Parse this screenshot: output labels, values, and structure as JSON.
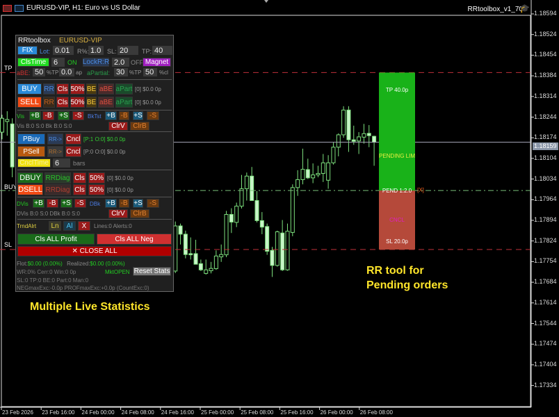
{
  "window": {
    "title": "EURUSD-VIP, H1:  Euro vs US Dollar",
    "indicator": "RRtoolbox_v1_70",
    "indicator_icon": "graduation-cap-icon"
  },
  "price_axis": [
    "1.18594",
    "1.18524",
    "1.18454",
    "1.18384",
    "1.18314",
    "1.18244",
    "1.18174",
    "1.18104",
    "1.18034",
    "1.17964",
    "1.17894",
    "1.17824",
    "1.17754",
    "1.17684",
    "1.17614",
    "1.17544",
    "1.17474",
    "1.17404",
    "1.17334"
  ],
  "current_price": "1.18159",
  "time_axis": [
    "23 Feb 2026",
    "23 Feb 16:00",
    "24 Feb 00:00",
    "24 Feb 08:00",
    "24 Feb 16:00",
    "25 Feb 00:00",
    "25 Feb 08:00",
    "25 Feb 16:00",
    "26 Feb 00:00",
    "26 Feb 08:00"
  ],
  "colors": {
    "bull": "#7de07d",
    "bear": "#c8f5c8",
    "tp_box": "#19b219",
    "sl_box": "#b5493a",
    "tp_line": "#c0303a",
    "entry_line": "#7ac07a"
  },
  "levels": {
    "tp": 1.18395,
    "entry": 1.17995,
    "sl": 1.17795,
    "current": 1.18159,
    "tp_label": "TP",
    "entry_label": "BUY",
    "sl_label": "SL"
  },
  "rr_box": {
    "tp_text": "TP 40.0p",
    "mid_text": "PENDING LIM",
    "entry_text": "PEND 1:2.0",
    "close_text": "[X]",
    "cancel_text": "CNCL",
    "sl_text": "SL 20.0p"
  },
  "candles": [
    {
      "i": 0,
      "o": 1.18193,
      "h": 1.18252,
      "l": 1.18169,
      "c": 1.1824
    },
    {
      "i": 1,
      "o": 1.18229,
      "h": 1.18264,
      "l": 1.18181,
      "c": 1.18236
    },
    {
      "i": 2,
      "o": 1.18221,
      "h": 1.1824,
      "l": 1.1804,
      "c": 1.18075
    },
    {
      "i": 34,
      "o": 1.17722,
      "h": 1.1789,
      "l": 1.17715,
      "c": 1.17875
    },
    {
      "i": 35,
      "o": 1.17875,
      "h": 1.17883,
      "l": 1.17812,
      "c": 1.17847
    },
    {
      "i": 36,
      "o": 1.17847,
      "h": 1.17859,
      "l": 1.17765,
      "c": 1.17778
    },
    {
      "i": 37,
      "o": 1.17781,
      "h": 1.17836,
      "l": 1.17761,
      "c": 1.17777
    },
    {
      "i": 38,
      "o": 1.17781,
      "h": 1.17828,
      "l": 1.17745,
      "c": 1.17745
    },
    {
      "i": 39,
      "o": 1.17747,
      "h": 1.17761,
      "l": 1.17722,
      "c": 1.17726
    },
    {
      "i": 40,
      "o": 1.17714,
      "h": 1.17761,
      "l": 1.1771,
      "c": 1.17726
    },
    {
      "i": 41,
      "o": 1.17723,
      "h": 1.17753,
      "l": 1.17714,
      "c": 1.17731
    },
    {
      "i": 42,
      "o": 1.1773,
      "h": 1.17792,
      "l": 1.17726,
      "c": 1.17773
    },
    {
      "i": 43,
      "o": 1.1777,
      "h": 1.17812,
      "l": 1.17753,
      "c": 1.17778
    },
    {
      "i": 44,
      "o": 1.17777,
      "h": 1.17926,
      "l": 1.17769,
      "c": 1.17914
    },
    {
      "i": 45,
      "o": 1.17914,
      "h": 1.17935,
      "l": 1.17851,
      "c": 1.17888
    },
    {
      "i": 46,
      "o": 1.17887,
      "h": 1.17954,
      "l": 1.17871,
      "c": 1.17942
    },
    {
      "i": 47,
      "o": 1.17942,
      "h": 1.18048,
      "l": 1.17934,
      "c": 1.18001
    },
    {
      "i": 48,
      "o": 1.18001,
      "h": 1.18056,
      "l": 1.17961,
      "c": 1.18044
    },
    {
      "i": 49,
      "o": 1.18044,
      "h": 1.18075,
      "l": 1.17961,
      "c": 1.17961
    },
    {
      "i": 50,
      "o": 1.17961,
      "h": 1.17993,
      "l": 1.17887,
      "c": 1.17893
    },
    {
      "i": 51,
      "o": 1.17893,
      "h": 1.17922,
      "l": 1.17847,
      "c": 1.17871
    },
    {
      "i": 52,
      "o": 1.17873,
      "h": 1.17883,
      "l": 1.17777,
      "c": 1.17789
    },
    {
      "i": 53,
      "o": 1.17792,
      "h": 1.17804,
      "l": 1.17702,
      "c": 1.17741
    },
    {
      "i": 54,
      "o": 1.17741,
      "h": 1.17859,
      "l": 1.17737,
      "c": 1.17855
    },
    {
      "i": 55,
      "o": 1.17851,
      "h": 1.17895,
      "l": 1.17722,
      "c": 1.17726
    },
    {
      "i": 56,
      "o": 1.17726,
      "h": 1.17883,
      "l": 1.17723,
      "c": 1.17857
    },
    {
      "i": 57,
      "o": 1.17853,
      "h": 1.18016,
      "l": 1.1784,
      "c": 1.18005
    },
    {
      "i": 58,
      "o": 1.18005,
      "h": 1.18064,
      "l": 1.17977,
      "c": 1.18032
    },
    {
      "i": 59,
      "o": 1.18032,
      "h": 1.18137,
      "l": 1.18016,
      "c": 1.18067
    },
    {
      "i": 60,
      "o": 1.18066,
      "h": 1.18103,
      "l": 1.18034,
      "c": 1.18038
    },
    {
      "i": 61,
      "o": 1.18038,
      "h": 1.18087,
      "l": 1.1802,
      "c": 1.18048
    },
    {
      "i": 62,
      "o": 1.18048,
      "h": 1.18079,
      "l": 1.1804,
      "c": 1.18053
    },
    {
      "i": 63,
      "o": 1.18053,
      "h": 1.18119,
      "l": 1.18024,
      "c": 1.18089
    },
    {
      "i": 64,
      "o": 1.1803,
      "h": 1.18115,
      "l": 1.18001,
      "c": 1.18089
    },
    {
      "i": 65,
      "o": 1.18089,
      "h": 1.18158,
      "l": 1.18083,
      "c": 1.18142
    },
    {
      "i": 66,
      "o": 1.18142,
      "h": 1.18189,
      "l": 1.18111,
      "c": 1.18184
    },
    {
      "i": 67,
      "o": 1.18184,
      "h": 1.18281,
      "l": 1.18174,
      "c": 1.18268
    },
    {
      "i": 68,
      "o": 1.18268,
      "h": 1.18281,
      "l": 1.18126,
      "c": 1.18167
    },
    {
      "i": 69,
      "o": 1.18167,
      "h": 1.18215,
      "l": 1.1815,
      "c": 1.18162
    },
    {
      "i": 70,
      "o": 1.18163,
      "h": 1.18193,
      "l": 1.18119,
      "c": 1.18177
    },
    {
      "i": 71,
      "o": 1.18176,
      "h": 1.18221,
      "l": 1.18154,
      "c": 1.18188
    },
    {
      "i": 72,
      "o": 1.18189,
      "h": 1.18217,
      "l": 1.18142,
      "c": 1.18181
    },
    {
      "i": 73,
      "o": 1.18179,
      "h": 1.18181,
      "l": 1.18079,
      "c": 1.18159
    }
  ],
  "panel": {
    "title": "RRtoolbox",
    "symbol": "EURUSD-VIP",
    "fix": "FIX",
    "lot_label": "Lot:",
    "lot": "0.01",
    "risk_label": "R%:",
    "risk": "1.0",
    "sl_label": "SL:",
    "sl": "20",
    "tp_label": "TP:",
    "tp": "40",
    "clstime": "ClsTime",
    "clstime_val": "6",
    "clstime_state": "ON",
    "lockrr": "LockR:R",
    "lockrr_val": "2.0",
    "lockrr_state": "OFF",
    "magnet": "Magnet",
    "abe_label": "aBE:",
    "abe_val": "50",
    "abe_unit": "%TP",
    "abe_p": "0.0",
    "abe_p_unit": "ap",
    "apartial_label": "aPartial:",
    "apartial_tp": "30",
    "apartial_tp_unit": "%TP",
    "apartial_cl": "50",
    "apartial_cl_unit": "%cl",
    "buy": "BUY",
    "sell": "SELL",
    "rr": "RR",
    "cls": "Cls",
    "half": "50%",
    "be": "BE",
    "abe": "aBE",
    "apart": "aPart",
    "buy_stat": "[0] $0.0 0p",
    "sell_stat": "[0] $0.0 0p",
    "vis": "Vis",
    "plus_b": "+B",
    "minus_b": "-B",
    "plus_s": "+S",
    "minus_s": "-S",
    "bktst": "BkTst",
    "vis_stat": "Vis B:0 S:0  Bk B:0 S:0",
    "clrv": "ClrV",
    "clrb": "ClrB",
    "pbuy": "PBuy",
    "psell": "PSell",
    "rr_arrow": "RR->",
    "cncl": "Cncl",
    "pbuy_stat": "[P:1 O:0] $0.0 0p",
    "psell_stat": "[P:0 O:0] $0.0 0p",
    "cncltime": "CnclTime",
    "cncltime_val": "6",
    "bars": "bars",
    "dbuy": "DBUY",
    "dsell": "DSELL",
    "rrdiag": "RRDiag",
    "dbuy_stat": "[0] $0.0 0p",
    "dsell_stat": "[0] $0.0 0p",
    "dvis": "DVis",
    "dbk": "DBk",
    "dvis_stat": "DVis B:0 S:0  DBk B:0 S:0",
    "trndalrt": "TrndAlrt",
    "ln": "Ln",
    "al": "Al",
    "x": "X",
    "alerts_stat": "Lines:0 Alerts:0",
    "cls_all_profit": "Cls ALL Profit",
    "cls_all_neg": "Cls ALL Neg",
    "close_all": "✕ CLOSE ALL",
    "flot_label": "Flot:",
    "flot": "$0.00 (0.00%)",
    "realized_label": "Realized:",
    "realized": "$0.00 (0.00%)",
    "mkt": "MktOPEN",
    "stats1": "WR:0%   Cerr:0 Win:0 0p",
    "reset": "Reset Stats",
    "stats2": "SL:0 TP:0 BE:0 Part:0 Man:0",
    "stats3": "NEGmaxExc:-0.0p  PROFmaxExc:+0.0p (CountExc:0)"
  },
  "annotations": {
    "left": "Multiple Live Statistics",
    "right_line1": "RR tool for",
    "right_line2": "Pending orders"
  }
}
